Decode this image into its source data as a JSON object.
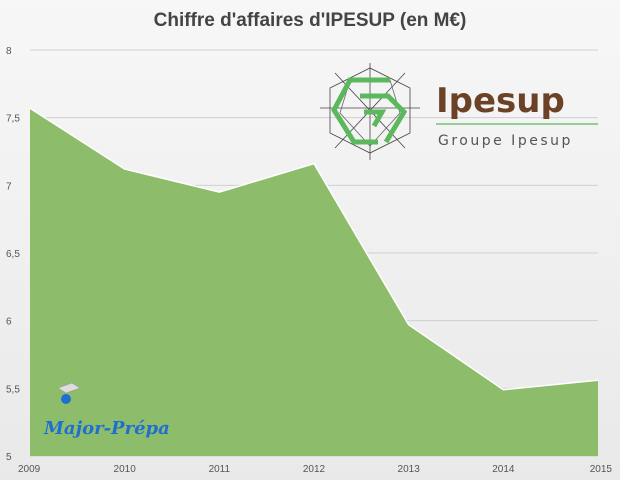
{
  "chart_data": {
    "type": "area",
    "title": "Chiffre d'affaires d'IPESUP (en M€)",
    "x": [
      "2009",
      "2010",
      "2011",
      "2012",
      "2013",
      "2014",
      "2015"
    ],
    "values": [
      7.57,
      7.12,
      6.95,
      7.16,
      5.97,
      5.49,
      5.56
    ],
    "ylim": [
      5,
      8
    ],
    "yticks": [
      "5",
      "5,5",
      "6",
      "6,5",
      "7",
      "7,5",
      "8"
    ],
    "grid": true,
    "fill_color": "#8dbd6b",
    "line_color": "#ffffff"
  },
  "logo": {
    "name": "Ipesup",
    "subtitle": "Groupe Ipesup",
    "brand_color": "#6b4226",
    "accent_color": "#5cb85c"
  },
  "watermark": {
    "text": "Major-Prépa",
    "color": "#1f6fd1"
  }
}
